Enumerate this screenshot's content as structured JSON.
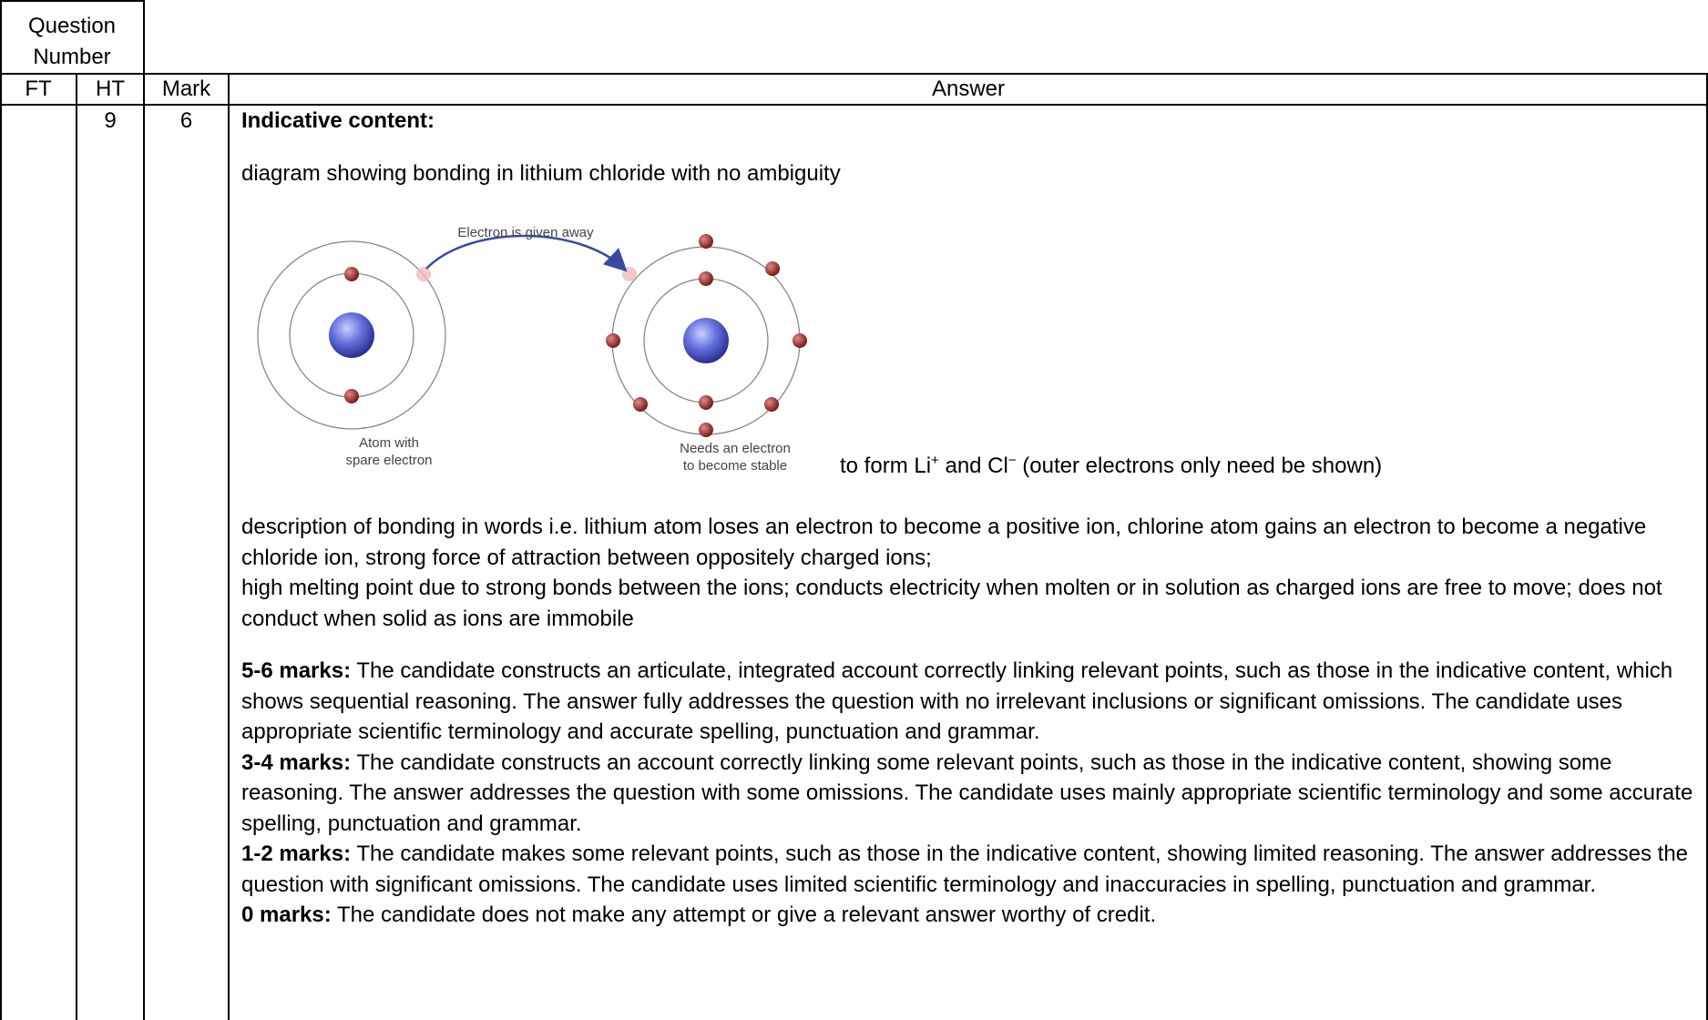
{
  "header": {
    "question_number": [
      "Question",
      "Number"
    ],
    "columns": [
      "FT",
      "HT",
      "Mark",
      "Answer"
    ]
  },
  "row": {
    "ht": "9",
    "mark": "6",
    "answer": {
      "heading": "Indicative content:",
      "intro": "diagram showing bonding in lithium chloride with no ambiguity",
      "diagram": {
        "label_top": "Electron is given away",
        "label_left": [
          "Atom with",
          "spare electron"
        ],
        "label_right": [
          "Needs an electron",
          "to become stable"
        ]
      },
      "caption": [
        "to form Li",
        "+",
        " and Cl",
        "−",
        " (outer electrons only need be shown)"
      ],
      "description": [
        "description of bonding in words i.e. lithium atom loses an electron to become a positive ion, chlorine atom gains an electron to become a negative chloride ion, strong force of attraction between oppositely charged ions;",
        "high melting point due to strong bonds between the ions; conducts electricity when molten or in solution as charged ions are free to move; does not conduct when solid as ions are immobile"
      ],
      "mark_bands": [
        {
          "label": "5-6 marks:",
          "text": "The candidate constructs an articulate, integrated account correctly linking relevant points, such as those in the indicative content, which shows sequential reasoning. The answer fully addresses the question with no irrelevant inclusions or significant omissions. The candidate uses appropriate scientific terminology and accurate spelling, punctuation and grammar."
        },
        {
          "label": "3-4 marks:",
          "text": "The candidate constructs an account correctly linking some relevant points, such as those in the indicative content, showing some reasoning. The answer addresses the question with some omissions. The candidate uses mainly appropriate scientific terminology and some accurate spelling, punctuation and grammar."
        },
        {
          "label": "1-2 marks:",
          "text": "The candidate makes some relevant points, such as those in the indicative content, showing limited reasoning. The answer addresses the question with significant omissions. The candidate uses limited scientific terminology and inaccuracies in spelling, punctuation and grammar."
        },
        {
          "label": "0 marks:",
          "text": "The candidate does not make any attempt or give a relevant answer worthy of credit."
        }
      ]
    }
  }
}
